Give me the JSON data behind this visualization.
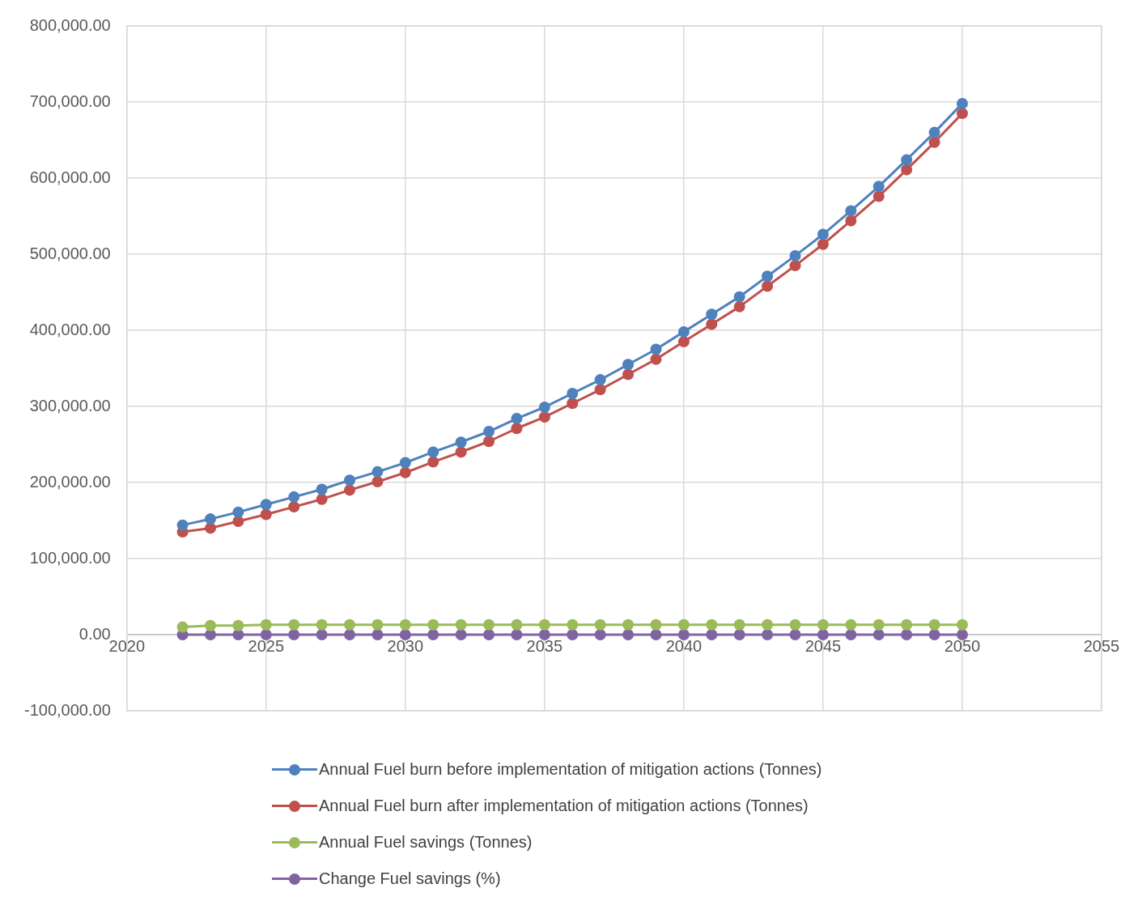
{
  "chart_data": {
    "type": "line",
    "x": [
      2022,
      2023,
      2024,
      2025,
      2026,
      2027,
      2028,
      2029,
      2030,
      2031,
      2032,
      2033,
      2034,
      2035,
      2036,
      2037,
      2038,
      2039,
      2040,
      2041,
      2042,
      2043,
      2044,
      2045,
      2046,
      2047,
      2048,
      2049,
      2050
    ],
    "series": [
      {
        "name": "Annual Fuel burn before implementation of mitigation actions (Tonnes)",
        "color": "#4f81bd",
        "values": [
          144000,
          152000,
          161000,
          171000,
          181000,
          191000,
          203000,
          214000,
          226000,
          240000,
          253000,
          267000,
          284000,
          299000,
          317000,
          335000,
          355000,
          375000,
          398000,
          421000,
          444000,
          471000,
          498000,
          526000,
          557000,
          589000,
          624000,
          660000,
          698000
        ]
      },
      {
        "name": "Annual Fuel burn after implementation of mitigation actions (Tonnes)",
        "color": "#c0504d",
        "values": [
          135000,
          140000,
          149000,
          158000,
          168000,
          178000,
          190000,
          201000,
          213000,
          227000,
          240000,
          254000,
          271000,
          286000,
          304000,
          322000,
          342000,
          362000,
          385000,
          408000,
          431000,
          458000,
          485000,
          513000,
          544000,
          576000,
          611000,
          647000,
          685000
        ]
      },
      {
        "name": "Annual Fuel savings (Tonnes)",
        "color": "#9bbb59",
        "values": [
          10000,
          12000,
          12000,
          13000,
          13000,
          13000,
          13000,
          13000,
          13000,
          13000,
          13000,
          13000,
          13000,
          13000,
          13000,
          13000,
          13000,
          13000,
          13000,
          13000,
          13000,
          13000,
          13000,
          13000,
          13000,
          13000,
          13000,
          13000,
          13000
        ]
      },
      {
        "name": "Change Fuel savings (%)",
        "color": "#8064a2",
        "values": [
          0,
          0,
          0,
          0,
          0,
          0,
          0,
          0,
          0,
          0,
          0,
          0,
          0,
          0,
          0,
          0,
          0,
          0,
          0,
          0,
          0,
          0,
          0,
          0,
          0,
          0,
          0,
          0,
          0
        ]
      }
    ],
    "xlim": [
      2020,
      2055
    ],
    "xticks": [
      2020,
      2025,
      2030,
      2035,
      2040,
      2045,
      2050,
      2055
    ],
    "ylim": [
      -100000,
      800000
    ],
    "yticks": [
      {
        "value": -100000,
        "label": "-100,000.00"
      },
      {
        "value": 0,
        "label": "0.00"
      },
      {
        "value": 100000,
        "label": "100,000.00"
      },
      {
        "value": 200000,
        "label": "200,000.00"
      },
      {
        "value": 300000,
        "label": "300,000.00"
      },
      {
        "value": 400000,
        "label": "400,000.00"
      },
      {
        "value": 500000,
        "label": "500,000.00"
      },
      {
        "value": 600000,
        "label": "600,000.00"
      },
      {
        "value": 700000,
        "label": "700,000.00"
      },
      {
        "value": 800000,
        "label": "800,000.00"
      }
    ],
    "grid": true,
    "legend": "bottom",
    "marker": "circle",
    "line_style": "solid"
  }
}
